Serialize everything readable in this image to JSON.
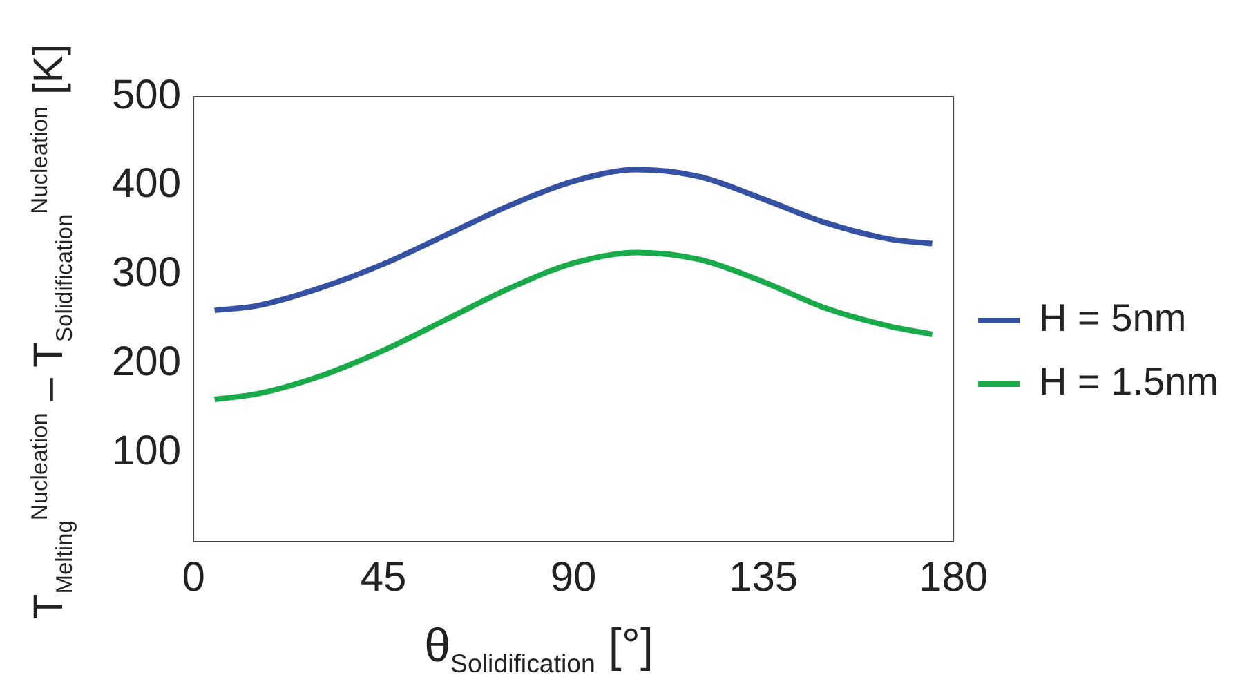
{
  "chart_data": {
    "type": "line",
    "xlabel": "θ$_{Solidification}$ [°]",
    "ylabel": "T$_{Melting}$$^{Nucleation}$ – T$_{Solidification}$$^{Nucleation}$ [K]",
    "xlim": [
      0,
      180
    ],
    "xticks": [
      0,
      45,
      90,
      135,
      180
    ],
    "ylim": [
      0,
      500
    ],
    "yticks": [
      100,
      200,
      300,
      400,
      500
    ],
    "grid": false,
    "legend": "right",
    "marker": "none",
    "line_style": "solid",
    "series": [
      {
        "name": "H = 5nm",
        "color": "#3451a3",
        "x": [
          5,
          15,
          30,
          45,
          60,
          75,
          90,
          105,
          120,
          135,
          150,
          165,
          175
        ],
        "values": [
          260,
          265,
          285,
          312,
          345,
          378,
          405,
          418,
          410,
          385,
          358,
          340,
          335
        ]
      },
      {
        "name": "H = 1.5nm",
        "color": "#19aa4a",
        "x": [
          5,
          15,
          30,
          45,
          60,
          75,
          90,
          105,
          120,
          135,
          150,
          165,
          175
        ],
        "values": [
          160,
          166,
          186,
          215,
          250,
          285,
          313,
          325,
          317,
          292,
          262,
          242,
          233
        ]
      }
    ]
  }
}
